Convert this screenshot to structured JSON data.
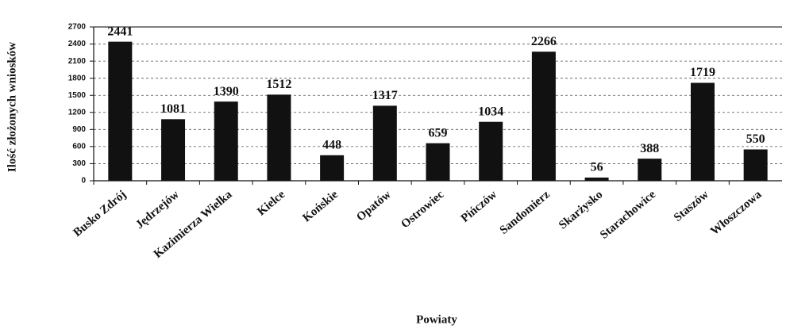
{
  "chart_data": {
    "type": "bar",
    "categories": [
      "Busko Zdrój",
      "Jędrzejów",
      "Kazimierza Wielka",
      "Kielce",
      "Końskie",
      "Opatów",
      "Ostrowiec",
      "Pińczów",
      "Sandomierz",
      "Skarżysko",
      "Starachowice",
      "Staszów",
      "Włoszczowa"
    ],
    "values": [
      2441,
      1081,
      1390,
      1512,
      448,
      1317,
      659,
      1034,
      2266,
      56,
      388,
      1719,
      550
    ],
    "color": "#111111",
    "x_label": "Powiaty",
    "y_label": "Ilość złożonych wniosków",
    "ylim": [
      0,
      2700
    ],
    "yticks": [
      0,
      300,
      600,
      900,
      1200,
      1500,
      1800,
      2100,
      2400,
      2700
    ],
    "grid": true
  }
}
